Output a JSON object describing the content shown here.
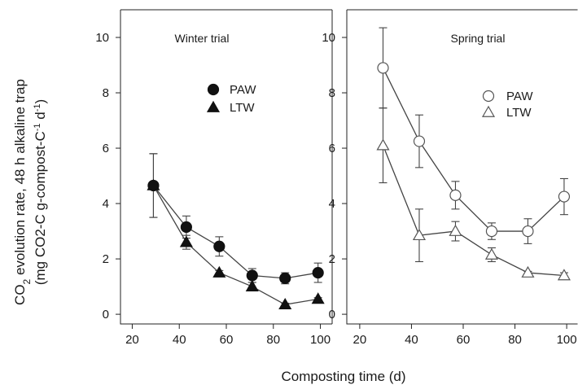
{
  "figure": {
    "xlabel": "Composting time (d)",
    "ylabel_line1_a": "CO",
    "ylabel_line1_sub": "2",
    "ylabel_line1_b": " evolution rate, 48 h alkaline trap",
    "ylabel_line2_a": "(mg CO2-C g-compost-C",
    "ylabel_line2_sup1": "-1",
    "ylabel_line2_b": " d",
    "ylabel_line2_sup2": "-1",
    "ylabel_line2_c": ")"
  },
  "chart_data": [
    {
      "type": "line",
      "title": "Winter trial",
      "xlim": [
        15,
        105
      ],
      "ylim": [
        -0.35,
        11.0
      ],
      "xticks": [
        "20",
        "40",
        "60",
        "80",
        "100"
      ],
      "yticks": [
        "0",
        "2",
        "4",
        "6",
        "8",
        "10"
      ],
      "legend": "upper center",
      "x": [
        29,
        43,
        57,
        71,
        85,
        99
      ],
      "series": [
        {
          "name": "PAW",
          "marker": "filled-circle",
          "values": [
            4.65,
            3.15,
            2.45,
            1.4,
            1.3,
            1.5
          ],
          "err": [
            1.15,
            0.4,
            0.35,
            0.25,
            0.2,
            0.35
          ]
        },
        {
          "name": "LTW",
          "marker": "filled-triangle",
          "values": [
            4.65,
            2.6,
            1.5,
            1.0,
            0.35,
            0.55
          ],
          "err": [
            1.15,
            0.25,
            0.08,
            0.15,
            0.05,
            0.05
          ]
        }
      ]
    },
    {
      "type": "line",
      "title": "Spring trial",
      "xlim": [
        15,
        105
      ],
      "ylim": [
        -0.35,
        11.0
      ],
      "xticks": [
        "20",
        "40",
        "60",
        "80",
        "100"
      ],
      "yticks": [
        "0",
        "2",
        "4",
        "6",
        "8",
        "10"
      ],
      "legend": "upper right",
      "x": [
        29,
        43,
        57,
        71,
        85,
        99
      ],
      "series": [
        {
          "name": "PAW",
          "marker": "open-circle",
          "values": [
            8.9,
            6.25,
            4.3,
            3.0,
            3.0,
            4.25
          ],
          "err": [
            1.45,
            0.95,
            0.5,
            0.3,
            0.45,
            0.65
          ]
        },
        {
          "name": "LTW",
          "marker": "open-triangle",
          "values": [
            6.1,
            2.85,
            3.0,
            2.15,
            1.5,
            1.4
          ],
          "err": [
            1.35,
            0.95,
            0.35,
            0.25,
            0.05,
            0.1
          ]
        }
      ]
    }
  ]
}
